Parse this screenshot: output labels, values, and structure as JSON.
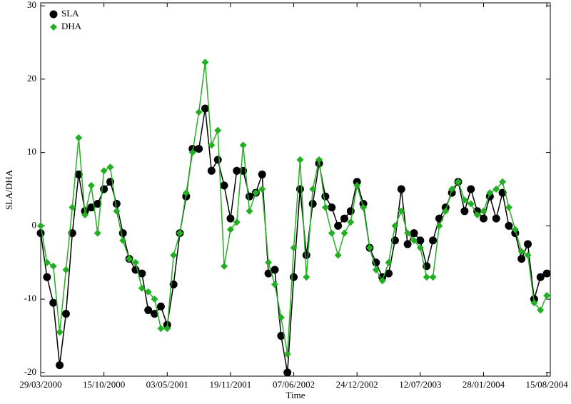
{
  "chart_data": {
    "type": "line",
    "x_label": "Time",
    "y_label": "SLA/DHA",
    "x": [
      "2000-03-29",
      "2000-04-18",
      "2000-05-08",
      "2000-05-28",
      "2000-06-17",
      "2000-07-07",
      "2000-07-27",
      "2000-08-16",
      "2000-09-05",
      "2000-09-25",
      "2000-10-15",
      "2000-11-04",
      "2000-11-24",
      "2000-12-14",
      "2001-01-03",
      "2001-01-23",
      "2001-02-12",
      "2001-03-04",
      "2001-03-24",
      "2001-04-13",
      "2001-05-03",
      "2001-05-23",
      "2001-06-12",
      "2001-07-02",
      "2001-07-22",
      "2001-08-11",
      "2001-08-31",
      "2001-09-20",
      "2001-10-10",
      "2001-10-30",
      "2001-11-19",
      "2001-12-09",
      "2001-12-29",
      "2002-01-18",
      "2002-02-07",
      "2002-02-27",
      "2002-03-19",
      "2002-04-08",
      "2002-04-28",
      "2002-05-18",
      "2002-06-07",
      "2002-06-27",
      "2002-07-17",
      "2002-08-06",
      "2002-08-26",
      "2002-09-15",
      "2002-10-05",
      "2002-10-25",
      "2002-11-14",
      "2002-12-04",
      "2002-12-24",
      "2003-01-13",
      "2003-02-02",
      "2003-02-22",
      "2003-03-14",
      "2003-04-03",
      "2003-04-23",
      "2003-05-13",
      "2003-06-02",
      "2003-06-22",
      "2003-07-12",
      "2003-08-01",
      "2003-08-21",
      "2003-09-10",
      "2003-09-30",
      "2003-10-20",
      "2003-11-09",
      "2003-11-29",
      "2003-12-19",
      "2004-01-08",
      "2004-01-28",
      "2004-02-17",
      "2004-03-08",
      "2004-03-28",
      "2004-04-17",
      "2004-05-07",
      "2004-05-27",
      "2004-06-16",
      "2004-07-06",
      "2004-07-26",
      "2004-08-15"
    ],
    "series": [
      {
        "name": "SLA",
        "color": "#000000",
        "marker": "circle",
        "values": [
          -1,
          -7,
          -10.5,
          -19,
          -12,
          -1,
          7,
          2,
          2.5,
          3,
          5,
          6,
          3,
          -1,
          -4.5,
          -6,
          -6.5,
          -11.5,
          -12,
          -11,
          -13.5,
          -8,
          -1,
          4,
          10.5,
          10.5,
          16,
          7.5,
          9,
          5.5,
          1,
          7.5,
          7.5,
          4,
          4.5,
          7,
          -6.5,
          -6,
          -15,
          -20,
          -7,
          5,
          -4,
          3,
          8.5,
          4,
          2.5,
          0,
          1,
          2,
          6,
          3,
          -3,
          -5,
          -7,
          -6.5,
          -2,
          5,
          -2.5,
          -1,
          -2,
          -5.5,
          -2,
          1,
          2.5,
          4.5,
          6,
          2,
          5,
          2,
          1,
          4,
          1,
          4.5,
          0,
          -1,
          -4.5,
          -2.5,
          -10,
          -7,
          -6.5
        ]
      },
      {
        "name": "DHA",
        "color": "#22b022",
        "marker": "diamond",
        "values": [
          0,
          -5,
          -5.5,
          -14.5,
          -6,
          2.5,
          12,
          1.5,
          5.5,
          -1,
          7.5,
          8,
          2,
          -2,
          -4.5,
          -5,
          -8.5,
          -9,
          -10,
          -14,
          -14,
          -4,
          -1,
          4.5,
          10,
          15.5,
          22.3,
          11,
          13,
          -5.5,
          -0.5,
          0.5,
          11,
          2,
          4.5,
          5,
          -5,
          -8,
          -12.5,
          -17.5,
          -3,
          9,
          -7,
          5,
          9,
          2.5,
          -1,
          -4,
          -1,
          0.5,
          5.5,
          2.5,
          -3,
          -6,
          -7.5,
          -5,
          0,
          2,
          -1,
          -2,
          -3,
          -7,
          -7,
          0,
          2,
          5,
          6,
          3.5,
          3,
          1.5,
          2,
          4.5,
          5,
          6,
          2.5,
          -0.5,
          -3.5,
          -4,
          -10.5,
          -11.5,
          -9.5
        ]
      }
    ],
    "xlim": [
      "2000-03-29",
      "2004-08-26"
    ],
    "xticks": [
      {
        "value": "2000-03-29",
        "label": "29/03/2000"
      },
      {
        "value": "2000-10-15",
        "label": "15/10/2000"
      },
      {
        "value": "2001-05-03",
        "label": "03/05/2001"
      },
      {
        "value": "2001-11-19",
        "label": "19/11/2001"
      },
      {
        "value": "2002-06-07",
        "label": "07/06/2002"
      },
      {
        "value": "2002-12-24",
        "label": "24/12/2002"
      },
      {
        "value": "2003-07-12",
        "label": "12/07/2003"
      },
      {
        "value": "2004-01-28",
        "label": "28/01/2004"
      },
      {
        "value": "2004-08-15",
        "label": "15/08/2004"
      }
    ],
    "ylim": [
      -20.5,
      30.4
    ],
    "yticks": [
      -20,
      -10,
      0,
      10,
      20,
      30
    ],
    "legend": "upper left"
  }
}
